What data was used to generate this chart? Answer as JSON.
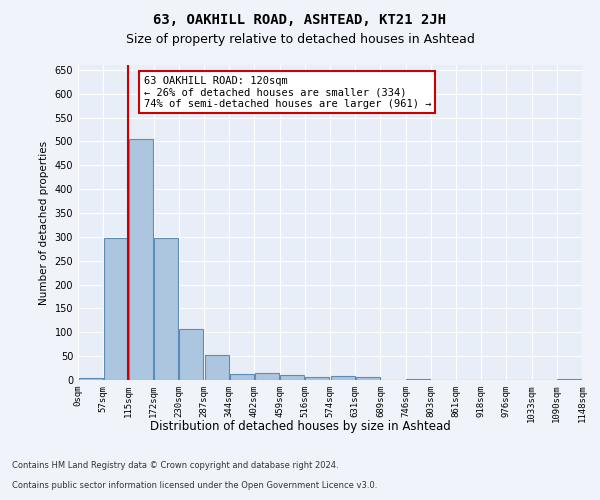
{
  "title1": "63, OAKHILL ROAD, ASHTEAD, KT21 2JH",
  "title2": "Size of property relative to detached houses in Ashtead",
  "xlabel": "Distribution of detached houses by size in Ashtead",
  "ylabel": "Number of detached properties",
  "bin_edges": [
    "0sqm",
    "57sqm",
    "115sqm",
    "172sqm",
    "230sqm",
    "287sqm",
    "344sqm",
    "402sqm",
    "459sqm",
    "516sqm",
    "574sqm",
    "631sqm",
    "689sqm",
    "746sqm",
    "803sqm",
    "861sqm",
    "918sqm",
    "976sqm",
    "1033sqm",
    "1090sqm",
    "1148sqm"
  ],
  "bar_heights": [
    5,
    298,
    505,
    298,
    107,
    52,
    13,
    15,
    11,
    7,
    8,
    6,
    0,
    3,
    0,
    0,
    0,
    0,
    0,
    3
  ],
  "bar_color": "#adc6e0",
  "bar_edge_color": "#5b8db8",
  "vline_x": 1.5,
  "vline_color": "#cc0000",
  "annotation_text": "63 OAKHILL ROAD: 120sqm\n← 26% of detached houses are smaller (334)\n74% of semi-detached houses are larger (961) →",
  "annotation_box_color": "#ffffff",
  "annotation_box_edge": "#cc0000",
  "ylim": [
    0,
    660
  ],
  "yticks": [
    0,
    50,
    100,
    150,
    200,
    250,
    300,
    350,
    400,
    450,
    500,
    550,
    600,
    650
  ],
  "footer1": "Contains HM Land Registry data © Crown copyright and database right 2024.",
  "footer2": "Contains public sector information licensed under the Open Government Licence v3.0.",
  "bg_color": "#f0f4fa",
  "plot_bg_color": "#e8eef8"
}
